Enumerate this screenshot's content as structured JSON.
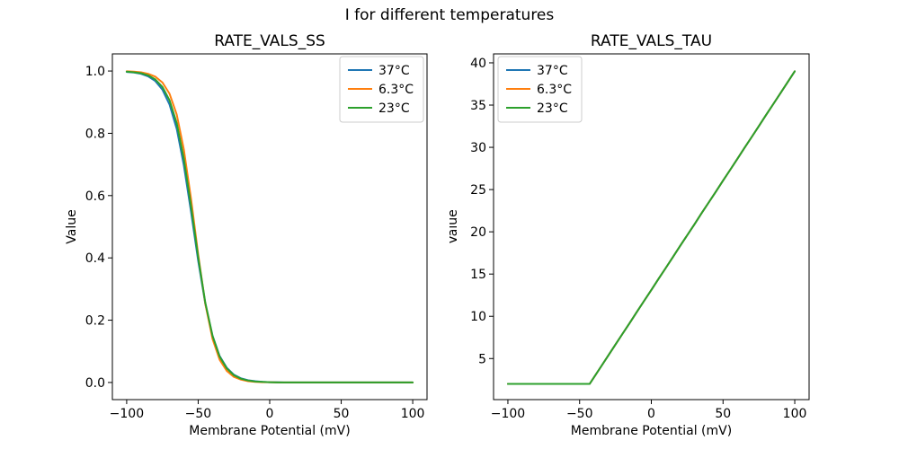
{
  "figure": {
    "title": "I for different temperatures"
  },
  "colors": {
    "c37": "#1f77b4",
    "c63": "#ff7f0e",
    "c23": "#2ca02c"
  },
  "chart_data": [
    {
      "type": "line",
      "title": "RATE_VALS_SS",
      "xlabel": "Membrane Potential (mV)",
      "ylabel": "Value",
      "xlim": [
        -110,
        110
      ],
      "ylim": [
        -0.055,
        1.055
      ],
      "xticks": [
        -100,
        -50,
        0,
        50,
        100
      ],
      "xtick_labels": [
        "−100",
        "−50",
        "0",
        "50",
        "100"
      ],
      "yticks": [
        0.0,
        0.2,
        0.4,
        0.6,
        0.8,
        1.0
      ],
      "ytick_labels": [
        "0.0",
        "0.2",
        "0.4",
        "0.6",
        "0.8",
        "1.0"
      ],
      "legend": {
        "position": "upper-right",
        "entries": [
          "37°C",
          "6.3°C",
          "23°C"
        ]
      },
      "grid": false,
      "x": [
        -100,
        -95,
        -90,
        -85,
        -80,
        -75,
        -70,
        -65,
        -60,
        -55,
        -50,
        -45,
        -40,
        -35,
        -30,
        -25,
        -20,
        -15,
        -10,
        -5,
        0,
        5,
        10,
        15,
        20,
        25,
        30,
        35,
        40,
        45,
        50,
        55,
        60,
        65,
        70,
        75,
        80,
        85,
        90,
        95,
        100
      ],
      "series": [
        {
          "name": "37°C",
          "color": "#1f77b4",
          "values": [
            0.997,
            0.995,
            0.991,
            0.983,
            0.968,
            0.94,
            0.892,
            0.814,
            0.697,
            0.548,
            0.39,
            0.252,
            0.15,
            0.085,
            0.047,
            0.025,
            0.013,
            0.007,
            0.004,
            0.002,
            0.001,
            0.001,
            0,
            0,
            0,
            0,
            0,
            0,
            0,
            0,
            0,
            0,
            0,
            0,
            0,
            0,
            0,
            0,
            0,
            0,
            0
          ]
        },
        {
          "name": "6.3°C",
          "color": "#ff7f0e",
          "values": [
            0.999,
            0.998,
            0.996,
            0.991,
            0.982,
            0.963,
            0.927,
            0.86,
            0.748,
            0.59,
            0.41,
            0.252,
            0.14,
            0.073,
            0.037,
            0.018,
            0.009,
            0.004,
            0.002,
            0.001,
            0.001,
            0,
            0,
            0,
            0,
            0,
            0,
            0,
            0,
            0,
            0,
            0,
            0,
            0,
            0,
            0,
            0,
            0,
            0,
            0,
            0
          ]
        },
        {
          "name": "23°C",
          "color": "#2ca02c",
          "values": [
            0.998,
            0.996,
            0.993,
            0.986,
            0.973,
            0.949,
            0.906,
            0.832,
            0.718,
            0.566,
            0.401,
            0.256,
            0.15,
            0.083,
            0.045,
            0.023,
            0.012,
            0.006,
            0.003,
            0.002,
            0.001,
            0,
            0,
            0,
            0,
            0,
            0,
            0,
            0,
            0,
            0,
            0,
            0,
            0,
            0,
            0,
            0,
            0,
            0,
            0,
            0
          ]
        }
      ]
    },
    {
      "type": "line",
      "title": "RATE_VALS_TAU",
      "xlabel": "Membrane Potential (mV)",
      "ylabel": "Value",
      "xlim": [
        -110,
        110
      ],
      "ylim": [
        0.14,
        41.06
      ],
      "xticks": [
        -100,
        -50,
        0,
        50,
        100
      ],
      "xtick_labels": [
        "−100",
        "−50",
        "0",
        "50",
        "100"
      ],
      "yticks": [
        5,
        10,
        15,
        20,
        25,
        30,
        35,
        40
      ],
      "ytick_labels": [
        "5",
        "10",
        "15",
        "20",
        "25",
        "30",
        "35",
        "40"
      ],
      "legend": {
        "position": "upper-left",
        "entries": [
          "37°C",
          "6.3°C",
          "23°C"
        ]
      },
      "grid": false,
      "x": [
        -100,
        -95,
        -90,
        -85,
        -80,
        -75,
        -70,
        -65,
        -60,
        -55,
        -50,
        -45,
        -43,
        -40,
        -35,
        -30,
        -25,
        -20,
        -15,
        -10,
        -5,
        0,
        5,
        10,
        15,
        20,
        25,
        30,
        35,
        40,
        45,
        50,
        55,
        60,
        65,
        70,
        75,
        80,
        85,
        90,
        95,
        100
      ],
      "series": [
        {
          "name": "37°C",
          "color": "#1f77b4",
          "values": [
            2,
            2,
            2,
            2,
            2,
            2,
            2,
            2,
            2,
            2,
            2,
            2,
            2,
            2.78,
            4.07,
            5.36,
            6.66,
            7.95,
            9.24,
            10.54,
            11.83,
            13.12,
            14.42,
            15.71,
            17.0,
            18.3,
            19.59,
            20.88,
            22.18,
            23.47,
            24.76,
            26.06,
            27.35,
            28.64,
            29.94,
            31.23,
            32.52,
            33.82,
            35.11,
            36.4,
            37.7,
            39.0
          ]
        },
        {
          "name": "6.3°C",
          "color": "#ff7f0e",
          "values": [
            2,
            2,
            2,
            2,
            2,
            2,
            2,
            2,
            2,
            2,
            2,
            2,
            2,
            2.78,
            4.07,
            5.36,
            6.66,
            7.95,
            9.24,
            10.54,
            11.83,
            13.12,
            14.42,
            15.71,
            17.0,
            18.3,
            19.59,
            20.88,
            22.18,
            23.47,
            24.76,
            26.06,
            27.35,
            28.64,
            29.94,
            31.23,
            32.52,
            33.82,
            35.11,
            36.4,
            37.7,
            39.0
          ]
        },
        {
          "name": "23°C",
          "color": "#2ca02c",
          "values": [
            2,
            2,
            2,
            2,
            2,
            2,
            2,
            2,
            2,
            2,
            2,
            2,
            2,
            2.78,
            4.07,
            5.36,
            6.66,
            7.95,
            9.24,
            10.54,
            11.83,
            13.12,
            14.42,
            15.71,
            17.0,
            18.3,
            19.59,
            20.88,
            22.18,
            23.47,
            24.76,
            26.06,
            27.35,
            28.64,
            29.94,
            31.23,
            32.52,
            33.82,
            35.11,
            36.4,
            37.7,
            39.0
          ]
        }
      ]
    }
  ]
}
